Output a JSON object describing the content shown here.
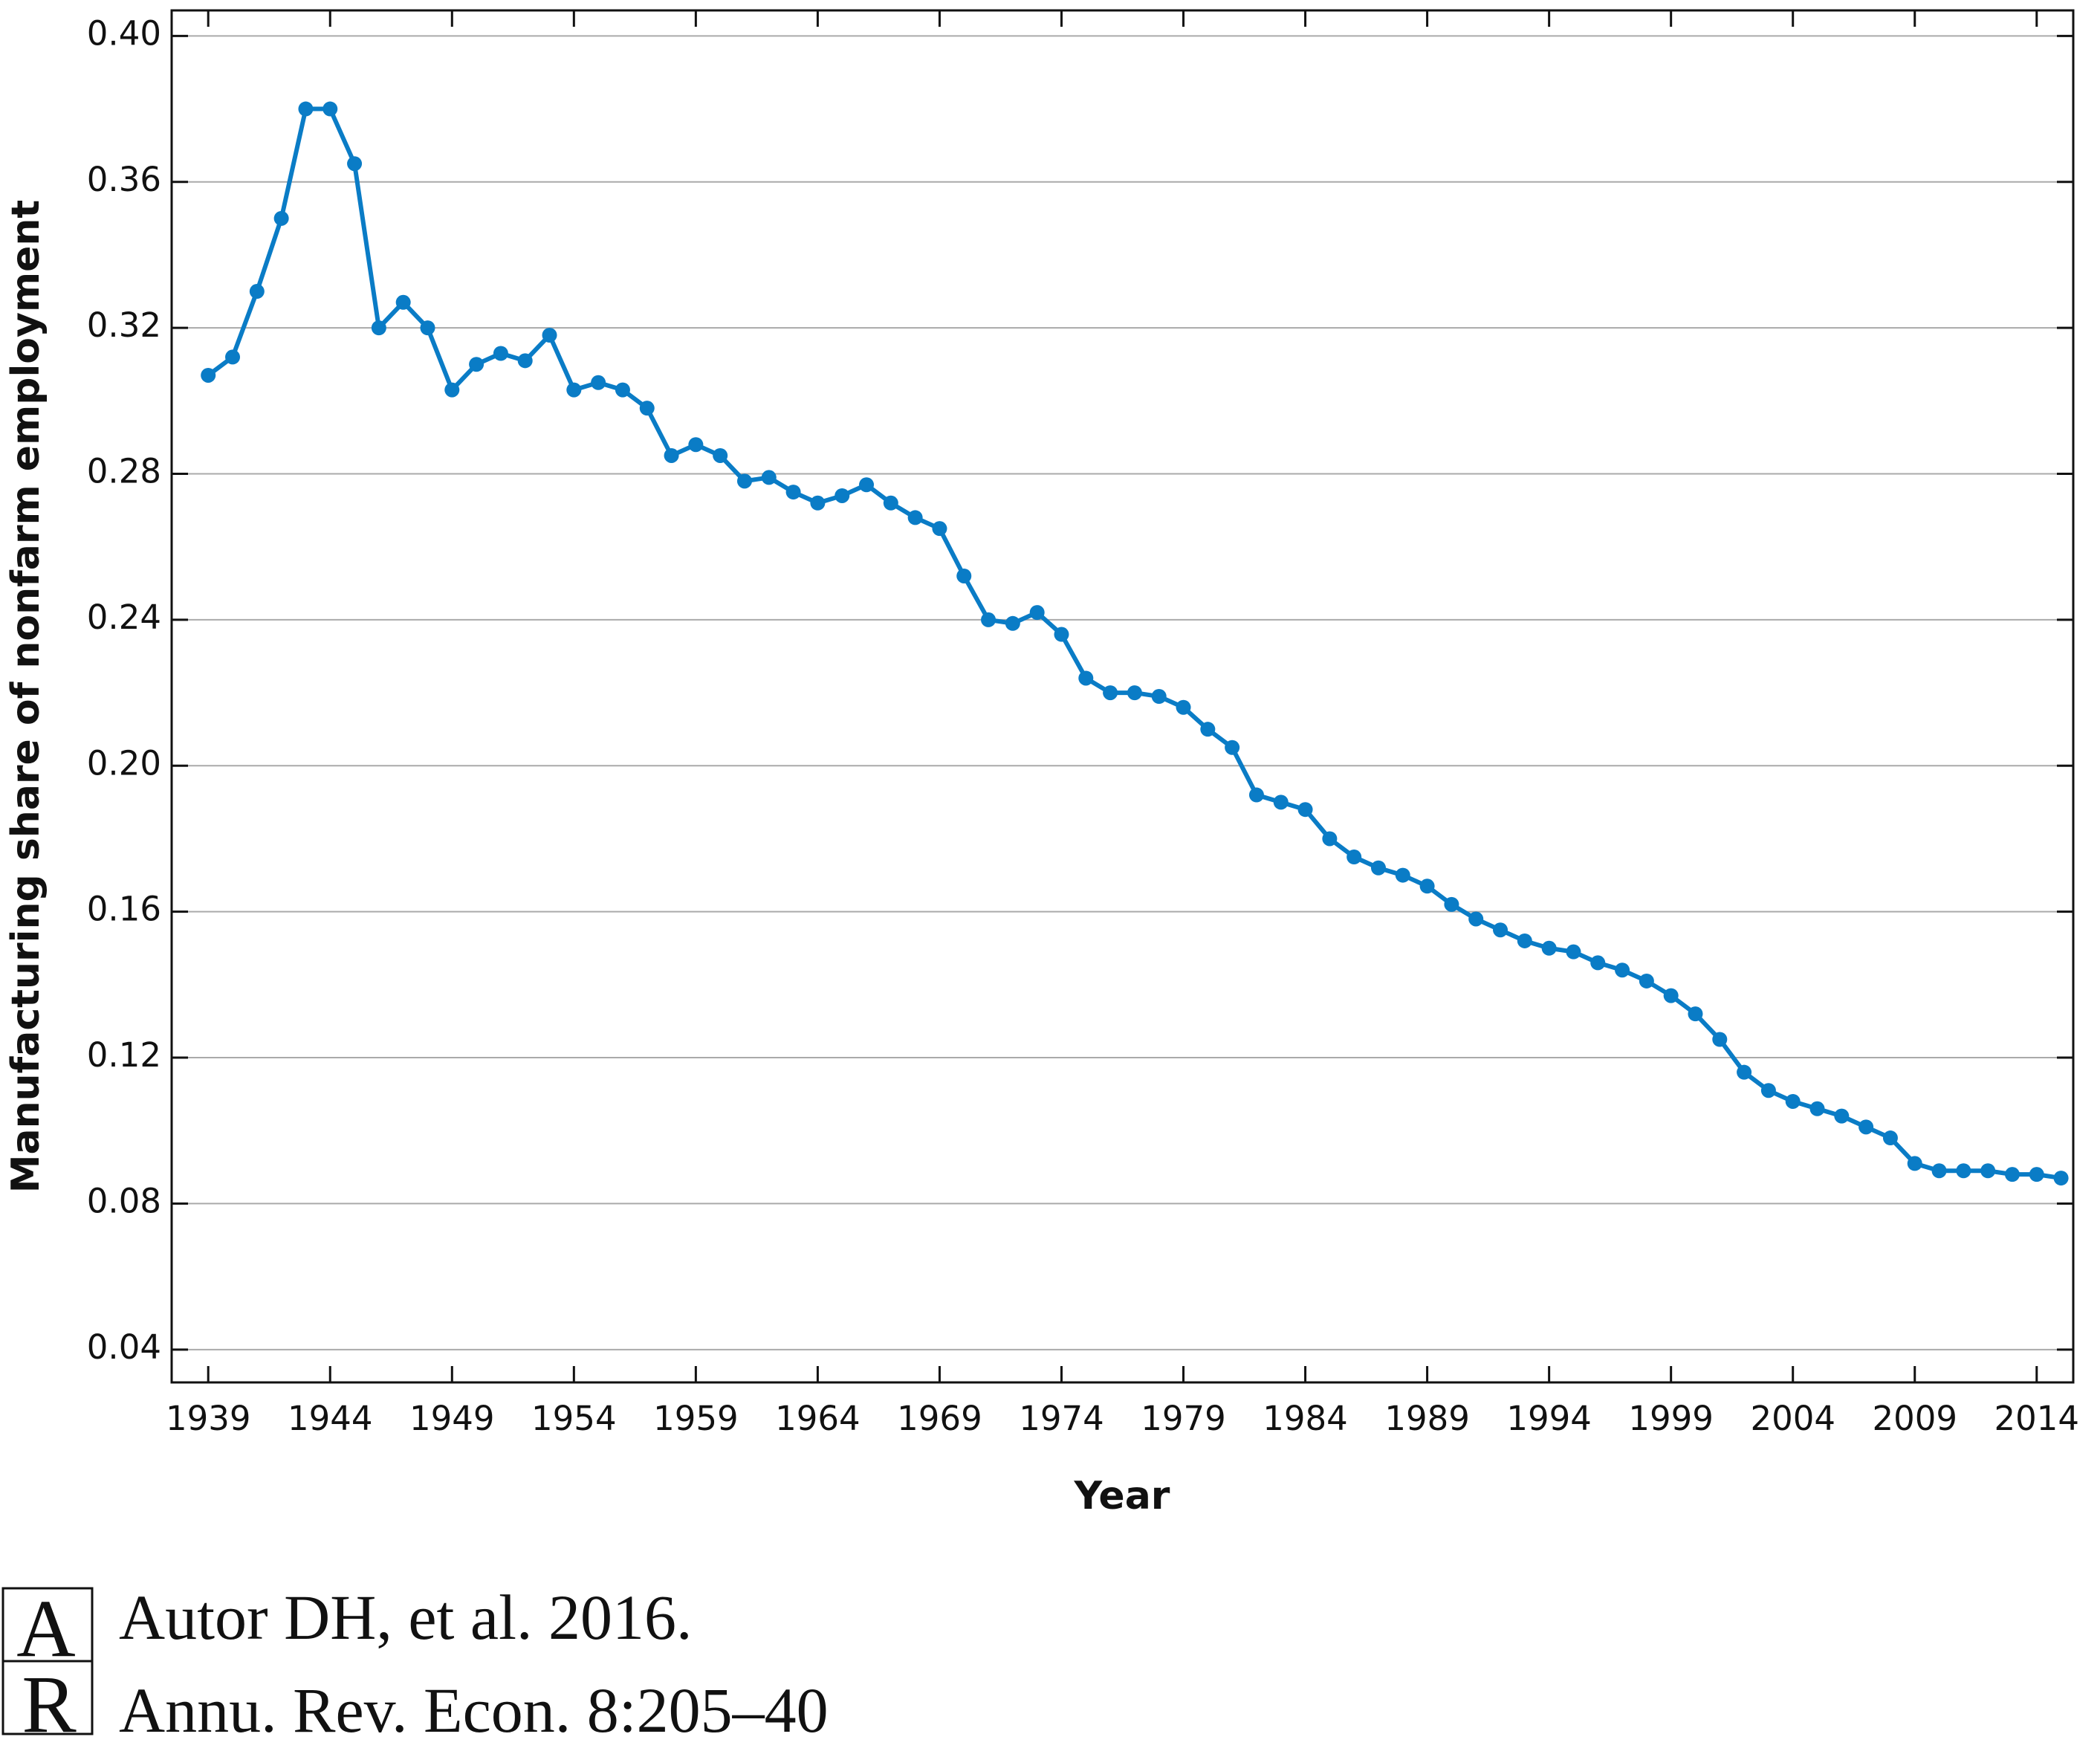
{
  "chart_data": {
    "type": "line",
    "ylabel": "Manufacturing share of nonfarm employment",
    "xlabel": "Year",
    "x": [
      1939,
      1940,
      1941,
      1942,
      1943,
      1944,
      1945,
      1946,
      1947,
      1948,
      1949,
      1950,
      1951,
      1952,
      1953,
      1954,
      1955,
      1956,
      1957,
      1958,
      1959,
      1960,
      1961,
      1962,
      1963,
      1964,
      1965,
      1966,
      1967,
      1968,
      1969,
      1970,
      1971,
      1972,
      1973,
      1974,
      1975,
      1976,
      1977,
      1978,
      1979,
      1980,
      1981,
      1982,
      1983,
      1984,
      1985,
      1986,
      1987,
      1988,
      1989,
      1990,
      1991,
      1992,
      1993,
      1994,
      1995,
      1996,
      1997,
      1998,
      1999,
      2000,
      2001,
      2002,
      2003,
      2004,
      2005,
      2006,
      2007,
      2008,
      2009,
      2010,
      2011,
      2012,
      2013,
      2014,
      2015
    ],
    "series": [
      {
        "name": "Manufacturing share",
        "color": "#0a7cc6",
        "values": [
          0.307,
          0.312,
          0.33,
          0.35,
          0.38,
          0.38,
          0.365,
          0.32,
          0.327,
          0.32,
          0.303,
          0.31,
          0.313,
          0.311,
          0.318,
          0.303,
          0.305,
          0.303,
          0.298,
          0.285,
          0.288,
          0.285,
          0.278,
          0.279,
          0.275,
          0.272,
          0.274,
          0.277,
          0.272,
          0.268,
          0.265,
          0.252,
          0.24,
          0.239,
          0.242,
          0.236,
          0.224,
          0.22,
          0.22,
          0.219,
          0.216,
          0.21,
          0.205,
          0.192,
          0.19,
          0.188,
          0.18,
          0.175,
          0.172,
          0.17,
          0.167,
          0.162,
          0.158,
          0.155,
          0.152,
          0.15,
          0.149,
          0.146,
          0.144,
          0.141,
          0.137,
          0.132,
          0.125,
          0.116,
          0.111,
          0.108,
          0.106,
          0.104,
          0.101,
          0.098,
          0.091,
          0.089,
          0.089,
          0.089,
          0.088,
          0.088,
          0.087
        ]
      }
    ],
    "xlim": [
      1937.5,
      2015.5
    ],
    "ylim": [
      0.031,
      0.407
    ],
    "xticks": [
      1939,
      1944,
      1949,
      1954,
      1959,
      1964,
      1969,
      1974,
      1979,
      1984,
      1989,
      1994,
      1999,
      2004,
      2009,
      2014
    ],
    "yticks": [
      0.04,
      0.08,
      0.12,
      0.16,
      {
        "value": 0.2,
        "label": "0.20"
      },
      0.24,
      0.28,
      0.32,
      0.36,
      {
        "value": 0.4,
        "label": "0.40"
      }
    ],
    "grid": true
  },
  "footer": {
    "logo": [
      "A",
      "R"
    ],
    "citation": [
      "Autor DH, et al. 2016.",
      "Annu. Rev. Econ. 8:205–40"
    ]
  }
}
